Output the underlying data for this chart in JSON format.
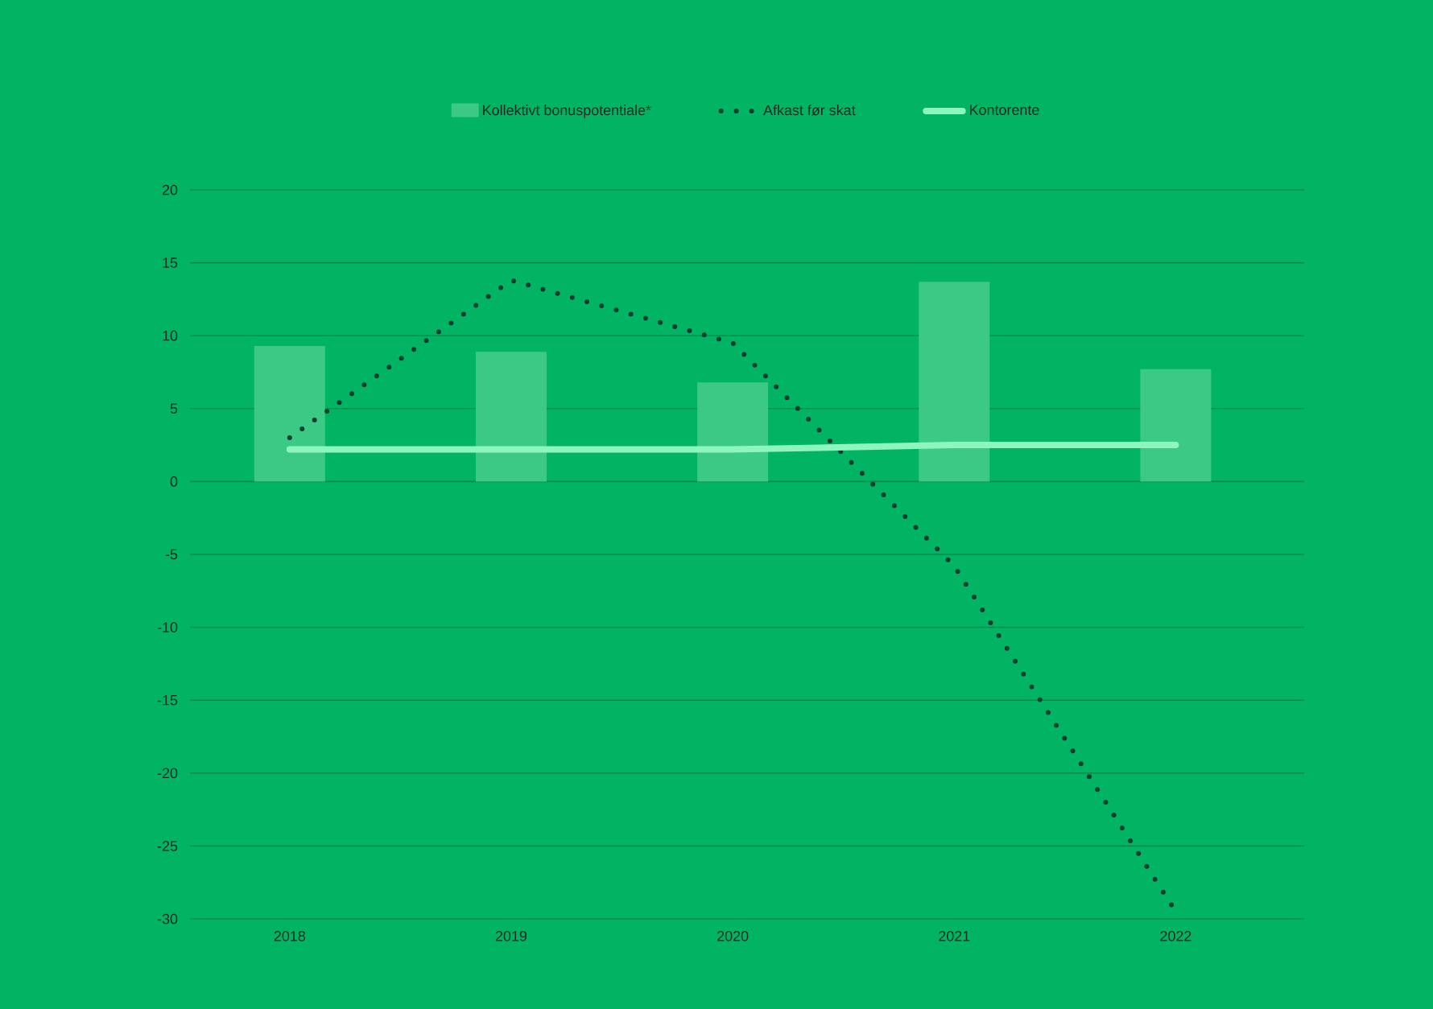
{
  "chart_data": {
    "type": "bar",
    "categories": [
      "2018",
      "2019",
      "2020",
      "2021",
      "2022"
    ],
    "series": [
      {
        "name": "Kollektivt bonuspotentiale*",
        "color": "#3cc885",
        "values": [
          9.3,
          8.9,
          6.8,
          13.7,
          7.7
        ]
      },
      {
        "name": "Afkast før skat",
        "type": "line",
        "line_style": "dotted",
        "color": "#0b3d2e",
        "values": [
          3.0,
          13.8,
          9.5,
          -5.8,
          -29.5
        ]
      },
      {
        "name": "Kontorente",
        "type": "line",
        "line_style": "solid",
        "color": "#8ff5c0",
        "values": [
          2.2,
          2.2,
          2.2,
          2.5,
          2.5
        ]
      }
    ],
    "ylim": [
      -30,
      20
    ],
    "yticks": [
      -30,
      -25,
      -20,
      -15,
      -10,
      -5,
      0,
      5,
      10,
      15,
      20
    ],
    "grid": "y",
    "legend": "top"
  }
}
